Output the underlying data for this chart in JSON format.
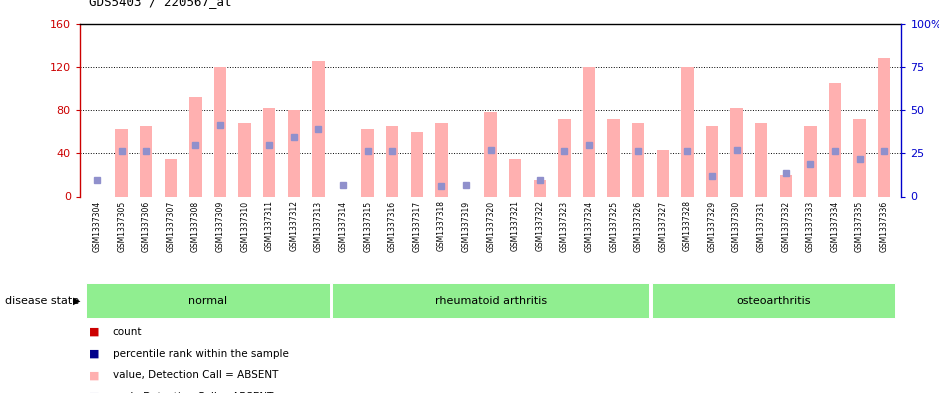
{
  "title": "GDS5403 / 220567_at",
  "samples": [
    "GSM1337304",
    "GSM1337305",
    "GSM1337306",
    "GSM1337307",
    "GSM1337308",
    "GSM1337309",
    "GSM1337310",
    "GSM1337311",
    "GSM1337312",
    "GSM1337313",
    "GSM1337314",
    "GSM1337315",
    "GSM1337316",
    "GSM1337317",
    "GSM1337318",
    "GSM1337319",
    "GSM1337320",
    "GSM1337321",
    "GSM1337322",
    "GSM1337323",
    "GSM1337324",
    "GSM1337325",
    "GSM1337326",
    "GSM1337327",
    "GSM1337328",
    "GSM1337329",
    "GSM1337330",
    "GSM1337331",
    "GSM1337332",
    "GSM1337333",
    "GSM1337334",
    "GSM1337335",
    "GSM1337336"
  ],
  "pink_bars": [
    0,
    62,
    65,
    35,
    92,
    120,
    68,
    82,
    80,
    125,
    0,
    62,
    65,
    60,
    68,
    0,
    78,
    35,
    15,
    72,
    120,
    72,
    68,
    43,
    120,
    65,
    82,
    68,
    20,
    65,
    105,
    72,
    128
  ],
  "blue_squares": [
    15,
    42,
    42,
    0,
    48,
    66,
    0,
    48,
    55,
    62,
    11,
    42,
    42,
    0,
    10,
    11,
    43,
    0,
    15,
    42,
    48,
    0,
    42,
    0,
    42,
    19,
    43,
    0,
    22,
    30,
    42,
    35,
    42
  ],
  "group_spans": [
    {
      "label": "normal",
      "start": 0,
      "end": 9
    },
    {
      "label": "rheumatoid arthritis",
      "start": 10,
      "end": 22
    },
    {
      "label": "osteoarthritis",
      "start": 23,
      "end": 32
    }
  ],
  "ylim_left": [
    0,
    160
  ],
  "ylim_right": [
    0,
    100
  ],
  "yticks_left": [
    0,
    40,
    80,
    120,
    160
  ],
  "yticks_right": [
    0,
    25,
    50,
    75,
    100
  ],
  "yticklabels_right": [
    "0",
    "25",
    "50",
    "75",
    "100%"
  ],
  "left_axis_color": "#cc0000",
  "right_axis_color": "#0000cc",
  "pink_color": "#ffb0b0",
  "blue_color": "#9090cc",
  "red_color": "#cc0000",
  "dark_blue_color": "#00008b",
  "group_color": "#90ee90",
  "tick_bg_color": "#d0d0d0",
  "disease_state_label": "disease state",
  "legend_labels": [
    "count",
    "percentile rank within the sample",
    "value, Detection Call = ABSENT",
    "rank, Detection Call = ABSENT"
  ],
  "legend_colors": [
    "#cc0000",
    "#00008b",
    "#ffb0b0",
    "#9090cc"
  ]
}
